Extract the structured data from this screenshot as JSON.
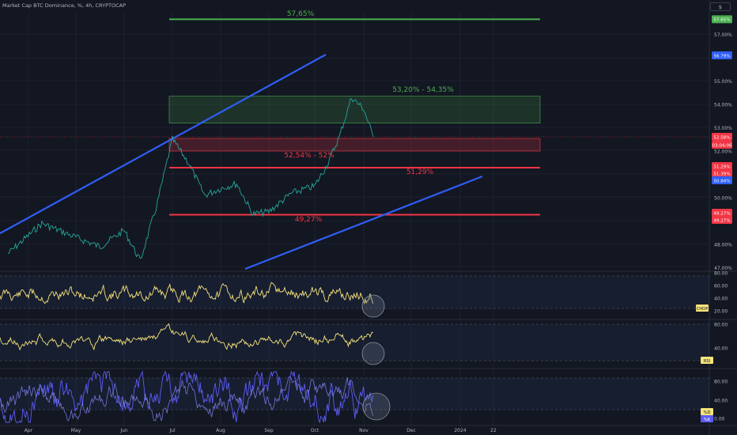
{
  "header": {
    "title": "Market Cap BTC Dominance, %, 4h, CRYPTOCAP"
  },
  "scale_button": "$",
  "colors": {
    "background": "#131722",
    "grid": "#1d2130",
    "price_line": "#26a69a",
    "trend_line": "#2f5ef7",
    "support_line": "#f23645",
    "target_line": "#4caf50",
    "oscillator": "#f5e37a",
    "stoch_k": "#5b5cf6",
    "axis_text": "#b2b5be"
  },
  "chart_data": [
    {
      "type": "line",
      "name": "BTC dominance price (4h)",
      "y_unit": "%",
      "ylim": [
        46.7,
        58.2
      ],
      "y_ticks": [
        "57.00%",
        "55.00%",
        "54.00%",
        "53.00%",
        "52.00%",
        "50.00%",
        "48.00%",
        "47.00%"
      ],
      "x_ticks": [
        "Apr",
        "May",
        "Jun",
        "Jul",
        "Aug",
        "Sep",
        "Oct",
        "Nov",
        "Dec",
        "2024",
        "22"
      ],
      "series": [
        {
          "values_by_month": [
            {
              "x": "Apr",
              "y": 47.6
            },
            {
              "x": "Apr",
              "y": 48.9
            },
            {
              "x": "May",
              "y": 48.3
            },
            {
              "x": "May",
              "y": 47.9
            },
            {
              "x": "Jun",
              "y": 48.6
            },
            {
              "x": "Jun",
              "y": 47.3
            },
            {
              "x": "Jun",
              "y": 49.6
            },
            {
              "x": "Jul",
              "y": 52.5
            },
            {
              "x": "Jul",
              "y": 51.5
            },
            {
              "x": "Jul",
              "y": 50.1
            },
            {
              "x": "Aug",
              "y": 50.4
            },
            {
              "x": "Aug",
              "y": 50.6
            },
            {
              "x": "Aug",
              "y": 49.3
            },
            {
              "x": "Sep",
              "y": 49.4
            },
            {
              "x": "Sep",
              "y": 50.2
            },
            {
              "x": "Oct",
              "y": 50.5
            },
            {
              "x": "Oct",
              "y": 51.4
            },
            {
              "x": "Oct",
              "y": 52.6
            },
            {
              "x": "Oct",
              "y": 54.3
            },
            {
              "x": "Nov",
              "y": 53.8
            },
            {
              "x": "Nov",
              "y": 52.6
            }
          ]
        }
      ],
      "annotations": {
        "target_line": {
          "label": "57,65%",
          "value": 57.65,
          "axis_label": "57.65%"
        },
        "upper_zone": {
          "label": "53,20% - 54,35%",
          "low": 53.2,
          "high": 54.35
        },
        "lower_zone": {
          "label": "52,54% - 52%",
          "low": 52.0,
          "high": 52.54
        },
        "support_1": {
          "label": "51,29%",
          "value": 51.29,
          "axis_label": "51.29%"
        },
        "support_2": {
          "label": "49,27%",
          "value": 49.27,
          "axis_label": "49.27%"
        },
        "current_price": {
          "value": "52.58%",
          "countdown": "03:04:06"
        },
        "axis_badges": [
          "56.79%",
          "51.39%",
          "50.84%",
          "49.27%"
        ]
      }
    },
    {
      "type": "line",
      "name": "CHOP",
      "ylim": [
        20,
        80
      ],
      "y_ticks": [
        "80.00",
        "60.00",
        "40.00",
        "20.00"
      ],
      "badge": "CHOP",
      "series": [
        {
          "name": "CHOP",
          "range": [
            20,
            80
          ]
        }
      ]
    },
    {
      "type": "line",
      "name": "RSI",
      "ylim": [
        20,
        90
      ],
      "y_ticks": [
        "80.00",
        "40.00"
      ],
      "badge": "RSI",
      "series": [
        {
          "name": "RSI",
          "range": [
            25,
            85
          ]
        }
      ]
    },
    {
      "type": "line",
      "name": "Stoch RSI",
      "ylim": [
        0,
        100
      ],
      "y_ticks": [
        "80.00",
        "40.00",
        "0.00"
      ],
      "badges": [
        "%D",
        "%K"
      ],
      "series": [
        {
          "name": "%K"
        },
        {
          "name": "%D"
        }
      ]
    }
  ]
}
